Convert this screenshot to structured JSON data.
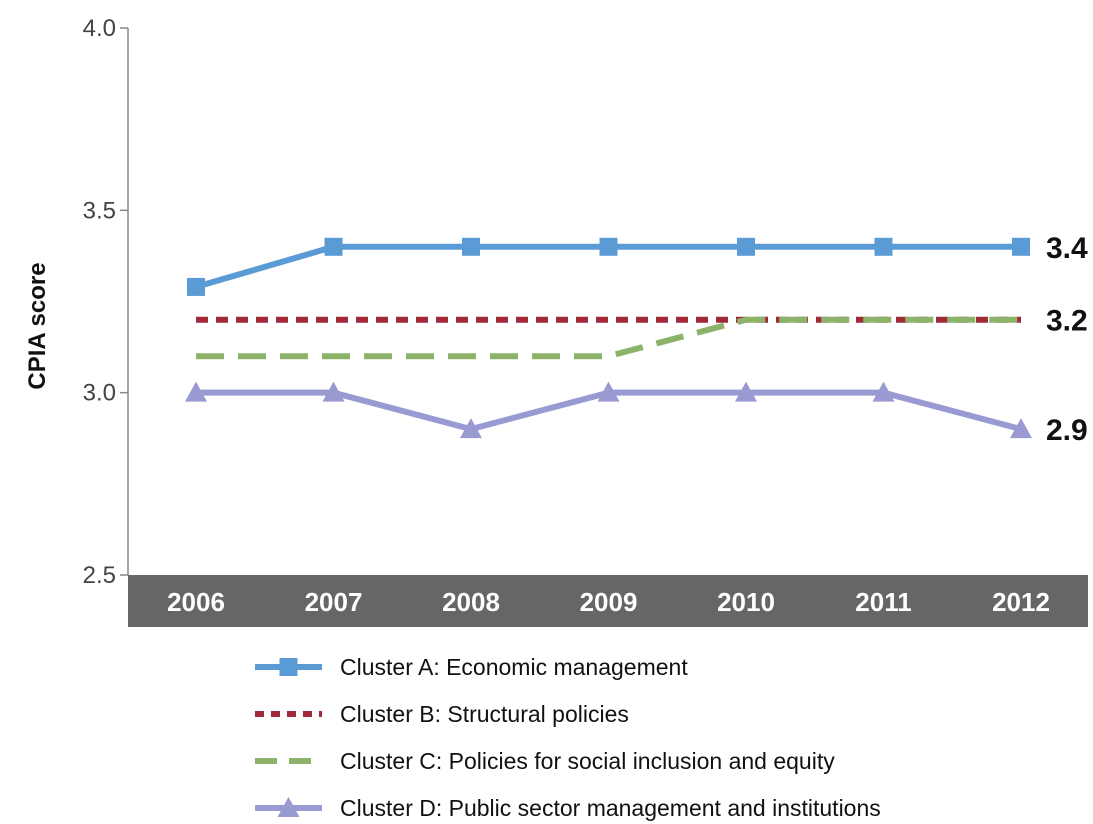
{
  "chart_data": {
    "type": "line",
    "title": "",
    "xlabel": "",
    "ylabel": "CPIA score",
    "categories": [
      "2006",
      "2007",
      "2008",
      "2009",
      "2010",
      "2011",
      "2012"
    ],
    "ylim": [
      2.5,
      4.0
    ],
    "yticks": [
      "4.0",
      "3.5",
      "3.0",
      "2.5"
    ],
    "ytick_values": [
      4.0,
      3.5,
      3.0,
      2.5
    ],
    "grid": false,
    "legend_position": "bottom",
    "series": [
      {
        "name": "Cluster  A: Economic management",
        "values": [
          3.29,
          3.4,
          3.4,
          3.4,
          3.4,
          3.4,
          3.4
        ],
        "color": "#5b9bd5",
        "style": "solid",
        "marker": "square",
        "end_label": "3.4"
      },
      {
        "name": "Cluster B: Structural policies",
        "values": [
          3.2,
          3.2,
          3.2,
          3.2,
          3.2,
          3.2,
          3.2
        ],
        "color": "#a0293a",
        "style": "dotted",
        "marker": "none",
        "end_label": "3.2"
      },
      {
        "name": "Cluster C: Policies for social inclusion and equity",
        "values": [
          3.1,
          3.1,
          3.1,
          3.1,
          3.2,
          3.2,
          3.2
        ],
        "color": "#8db36a",
        "style": "dashed",
        "marker": "none",
        "end_label": ""
      },
      {
        "name": "Cluster D: Public sector management and institutions",
        "values": [
          3.0,
          3.0,
          2.9,
          3.0,
          3.0,
          3.0,
          2.9
        ],
        "color": "#9a9ad2",
        "style": "solid",
        "marker": "triangle",
        "end_label": "2.9"
      }
    ]
  }
}
